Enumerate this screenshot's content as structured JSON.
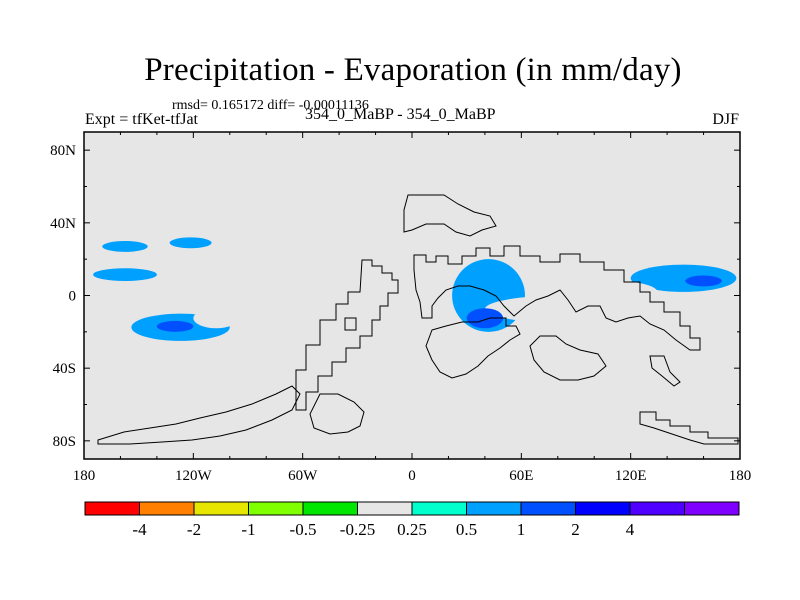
{
  "title": "Precipitation - Evaporation (in mm/day)",
  "stats_text": "rmsd= 0.165172 diff= -0.00011136",
  "left_label": "Expt = tfKet-tfJat",
  "center_label": "354_0_MaBP - 354_0_MaBP",
  "right_label": "DJF",
  "map": {
    "background_color": "#e6e6e6",
    "lon_range": [
      -180,
      180
    ],
    "lat_range": [
      -90,
      90
    ],
    "x_ticks": [
      {
        "lon": -180,
        "label": "180"
      },
      {
        "lon": -120,
        "label": "120W"
      },
      {
        "lon": -60,
        "label": "60W"
      },
      {
        "lon": 0,
        "label": "0"
      },
      {
        "lon": 60,
        "label": "60E"
      },
      {
        "lon": 120,
        "label": "120E"
      },
      {
        "lon": 180,
        "label": "180"
      }
    ],
    "y_ticks": [
      {
        "lat": 80,
        "label": "80N"
      },
      {
        "lat": 40,
        "label": "40N"
      },
      {
        "lat": 0,
        "label": "0"
      },
      {
        "lat": -40,
        "label": "40S"
      },
      {
        "lat": -80,
        "label": "80S"
      }
    ]
  },
  "colorbar": {
    "colors": [
      "#ff0000",
      "#ff8000",
      "#e6e600",
      "#80ff00",
      "#00e600",
      "#e6e6e6",
      "#00ffcc",
      "#00a0ff",
      "#0050ff",
      "#0000ff",
      "#5000ff",
      "#8000ff"
    ],
    "labels": [
      "-4",
      "-2",
      "-1",
      "-0.5",
      "-0.25",
      "0.25",
      "0.5",
      "1",
      "2",
      "4"
    ]
  },
  "chart_data": {
    "type": "heatmap",
    "title": "Precipitation - Evaporation (in mm/day)",
    "contour_levels": [
      -4,
      -2,
      -1,
      -0.5,
      -0.25,
      0.25,
      0.5,
      1,
      2,
      4
    ],
    "regions": [
      {
        "name": "",
        "lon": [
          -140,
          -120
        ],
        "lat": [
          -20,
          -14
        ],
        "value": 1
      },
      {
        "name": "",
        "lon": [
          -154,
          -100
        ],
        "lat": [
          -25,
          -10
        ],
        "value": 0.5
      },
      {
        "name": "",
        "lon": [
          -120,
          -95
        ],
        "lat": [
          -18,
          -7
        ],
        "value": -0.25
      },
      {
        "name": "",
        "lon": [
          -175,
          -140
        ],
        "lat": [
          8,
          15
        ],
        "value": 0.5
      },
      {
        "name": "",
        "lon": [
          -128,
          -110
        ],
        "lat": [
          12,
          20
        ],
        "value": -0.25
      },
      {
        "name": "",
        "lon": [
          -170,
          -145
        ],
        "lat": [
          24,
          30
        ],
        "value": 0.5
      },
      {
        "name": "",
        "lon": [
          -133,
          -110
        ],
        "lat": [
          26,
          32
        ],
        "value": 0.5
      },
      {
        "name": "",
        "lon": [
          150,
          170
        ],
        "lat": [
          5,
          11
        ],
        "value": 1
      },
      {
        "name": "",
        "lon": [
          120,
          178
        ],
        "lat": [
          2,
          17
        ],
        "value": 0.5
      },
      {
        "name": "",
        "lon": [
          88,
          135
        ],
        "lat": [
          -5,
          8
        ],
        "value": -0.25
      },
      {
        "name": "",
        "lon": [
          30,
          50
        ],
        "lat": [
          -18,
          -7
        ],
        "value": 1
      },
      {
        "name": "",
        "lon": [
          22,
          62
        ],
        "lat": [
          -20,
          20
        ],
        "value": 0.5
      },
      {
        "name": "",
        "lon": [
          40,
          125
        ],
        "lat": [
          -15,
          0
        ],
        "value": -0.25
      },
      {
        "name": "",
        "lon": [
          135,
          155
        ],
        "lat": [
          -30,
          -20
        ],
        "value": -0.25
      },
      {
        "name": "",
        "lon": [
          2,
          20
        ],
        "lat": [
          -36,
          -25
        ],
        "value": -0.25
      }
    ]
  }
}
